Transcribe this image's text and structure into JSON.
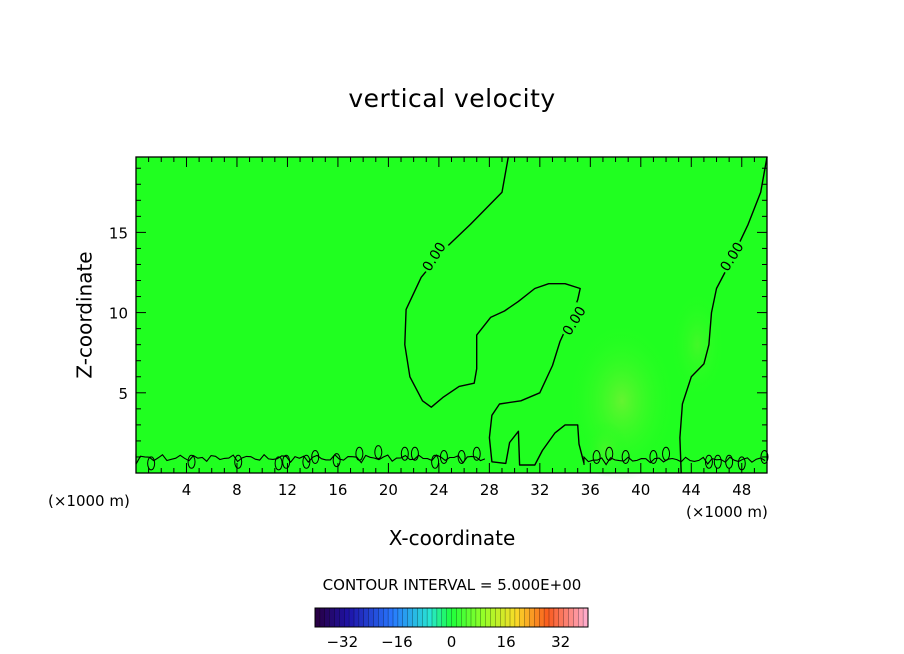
{
  "chart_data": {
    "type": "contour",
    "title": "vertical velocity",
    "xlabel": "X-coordinate",
    "ylabel": "Z-coordinate",
    "x_unit_label": "(×1000 m)",
    "x_ticks": [
      4,
      8,
      12,
      16,
      20,
      24,
      28,
      32,
      36,
      40,
      44,
      48
    ],
    "y_ticks": [
      5,
      10,
      15
    ],
    "xlim": [
      0,
      50
    ],
    "ylim": [
      0,
      19.7
    ],
    "contour_label": "0.00",
    "contour_labels": [
      {
        "text": "0.00",
        "x": 23.6,
        "z": 13.5,
        "angle": -58
      },
      {
        "text": "0.00",
        "x": 34.7,
        "z": 9.5,
        "angle": -58
      },
      {
        "text": "0.00",
        "x": 47.2,
        "z": 13.5,
        "angle": -58
      }
    ],
    "zero_contours": [
      [
        [
          29.5,
          19.7
        ],
        [
          29.0,
          17.5
        ],
        [
          26.5,
          15.5
        ],
        [
          24.5,
          14.0
        ],
        [
          22.6,
          12.2
        ],
        [
          21.4,
          10.2
        ],
        [
          21.3,
          8.0
        ],
        [
          21.7,
          6.0
        ],
        [
          22.7,
          4.5
        ],
        [
          23.4,
          4.1
        ],
        [
          24.3,
          4.7
        ],
        [
          25.6,
          5.4
        ],
        [
          26.8,
          5.6
        ],
        [
          27.0,
          6.5
        ],
        [
          27.0,
          8.6
        ],
        [
          28.1,
          9.7
        ],
        [
          29.2,
          10.1
        ],
        [
          30.3,
          10.7
        ],
        [
          31.6,
          11.5
        ],
        [
          32.7,
          11.8
        ],
        [
          34.0,
          11.8
        ],
        [
          35.2,
          11.5
        ],
        [
          35.0,
          10.8
        ],
        [
          34.3,
          9.4
        ],
        [
          33.6,
          8.2
        ],
        [
          33.0,
          6.7
        ],
        [
          32.0,
          5.0
        ],
        [
          30.5,
          4.5
        ],
        [
          28.8,
          4.3
        ],
        [
          28.2,
          3.6
        ],
        [
          28.0,
          2.2
        ],
        [
          28.2,
          0.7
        ],
        [
          29.3,
          0.6
        ],
        [
          29.6,
          1.9
        ],
        [
          30.3,
          2.6
        ],
        [
          30.4,
          0.5
        ],
        [
          31.6,
          0.5
        ],
        [
          32.2,
          1.4
        ],
        [
          33.2,
          2.5
        ],
        [
          34.0,
          3.0
        ],
        [
          35.0,
          3.0
        ],
        [
          35.1,
          1.8
        ],
        [
          35.5,
          0.6
        ]
      ],
      [
        [
          50.0,
          19.7
        ],
        [
          49.5,
          17.5
        ],
        [
          48.5,
          15.5
        ],
        [
          47.0,
          13.0
        ],
        [
          46.0,
          11.5
        ],
        [
          45.6,
          10.0
        ],
        [
          45.4,
          8.0
        ],
        [
          45.0,
          6.8
        ],
        [
          44.0,
          6.0
        ],
        [
          43.3,
          4.3
        ],
        [
          43.1,
          2.2
        ],
        [
          43.2,
          0.0
        ]
      ]
    ],
    "small_contours": [
      [
        1.2,
        0.6
      ],
      [
        4.4,
        0.7
      ],
      [
        8.1,
        0.7
      ],
      [
        11.3,
        0.6
      ],
      [
        11.9,
        0.7
      ],
      [
        13.5,
        0.7
      ],
      [
        14.2,
        1.0
      ],
      [
        15.9,
        0.8
      ],
      [
        17.7,
        1.2
      ],
      [
        19.2,
        1.3
      ],
      [
        21.3,
        1.2
      ],
      [
        22.1,
        1.2
      ],
      [
        23.7,
        0.7
      ],
      [
        24.4,
        1.0
      ],
      [
        25.8,
        1.0
      ],
      [
        27.0,
        1.2
      ],
      [
        36.5,
        1.0
      ],
      [
        37.5,
        1.2
      ],
      [
        38.8,
        1.0
      ],
      [
        41.0,
        1.0
      ],
      [
        42.0,
        1.2
      ],
      [
        45.4,
        0.7
      ],
      [
        46.1,
        0.7
      ],
      [
        47.0,
        0.7
      ],
      [
        48.0,
        0.6
      ],
      [
        49.8,
        1.0
      ]
    ],
    "colorbar": {
      "title": "CONTOUR INTERVAL = 5.000E+00",
      "tick_labels": [
        "-32",
        "-16",
        "0",
        "16",
        "32"
      ],
      "range": [
        -40,
        40
      ]
    },
    "colors": {
      "field": "#20ff20",
      "field_warm": "#6cf232",
      "line": "#000000"
    },
    "grid": false
  }
}
